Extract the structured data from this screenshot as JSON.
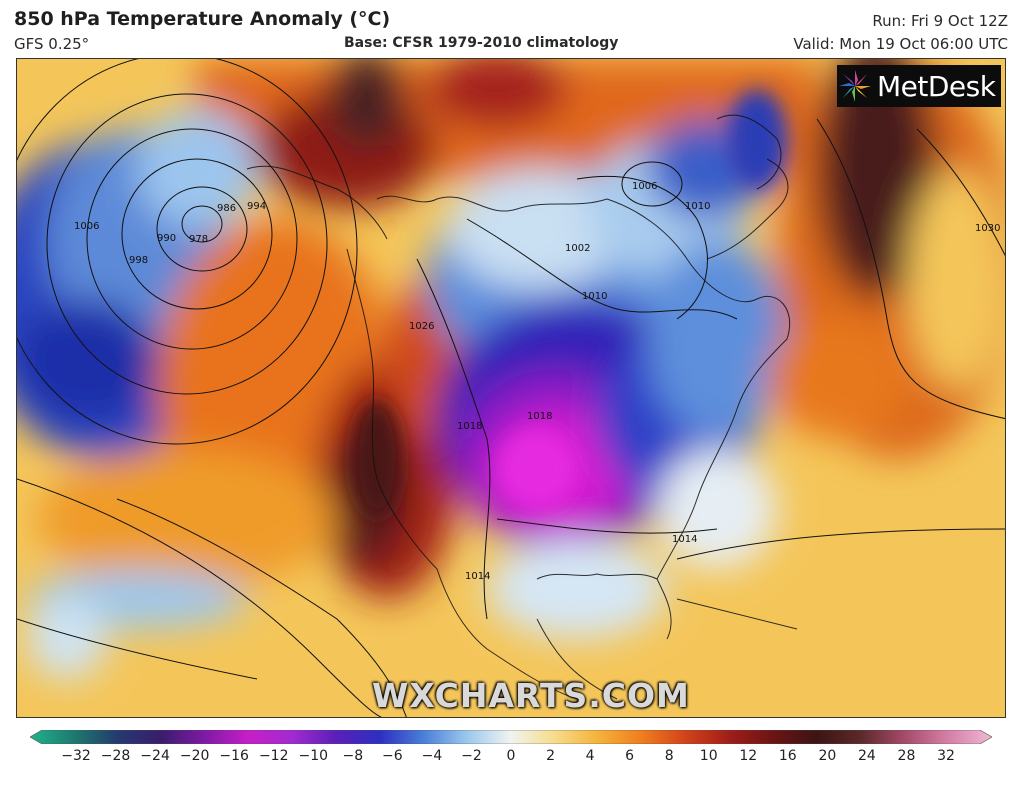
{
  "header": {
    "title": "850 hPa Temperature Anomaly (°C)",
    "subtitle": "GFS 0.25°",
    "base": "Base: CFSR 1979-2010 climatology",
    "run": "Run: Fri 9 Oct 12Z",
    "valid": "Valid: Mon 19 Oct 06:00 UTC"
  },
  "logo": {
    "text": "MetDesk",
    "icon": "sunburst-logo-icon"
  },
  "watermark": "WXCHARTS.COM",
  "isobar_labels": [
    "978",
    "986",
    "990",
    "994",
    "998",
    "1002",
    "1006",
    "1006",
    "1010",
    "1010",
    "1014",
    "1014",
    "1018",
    "1018",
    "1026",
    "1030"
  ],
  "colorbar": {
    "ticks": [
      "−32",
      "−28",
      "−24",
      "−20",
      "−16",
      "−12",
      "−10",
      "−8",
      "−6",
      "−4",
      "−2",
      "0",
      "2",
      "4",
      "6",
      "8",
      "10",
      "12",
      "16",
      "20",
      "24",
      "28",
      "32"
    ],
    "colors": [
      "#1fb38a",
      "#1e7a6f",
      "#253a6e",
      "#3a1d6d",
      "#7f1aa5",
      "#c71ec8",
      "#a12bd0",
      "#5a1fb8",
      "#2e2fc2",
      "#4a7fd8",
      "#9cc8ee",
      "#f1f3f1",
      "#f6dc8a",
      "#f4b23a",
      "#ef7d1e",
      "#d2421a",
      "#9f1e18",
      "#6b1414",
      "#3d1414",
      "#5b2a2a",
      "#a64a6a",
      "#d67fa6",
      "#f0b8d4"
    ]
  }
}
